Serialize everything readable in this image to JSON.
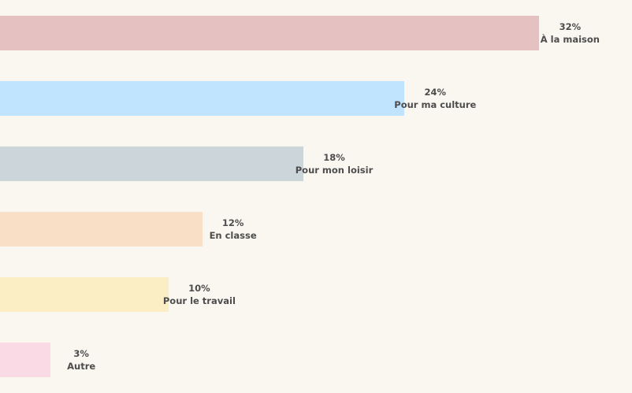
{
  "chart_data": {
    "type": "bar",
    "orientation": "horizontal",
    "categories": [
      "À la maison",
      "Pour ma culture",
      "Pour mon loisir",
      "En classe",
      "Pour le travail",
      "Autre"
    ],
    "values": [
      32,
      24,
      18,
      12,
      10,
      3
    ],
    "value_labels": [
      "32%",
      "24%",
      "18%",
      "12%",
      "10%",
      "3%"
    ],
    "colors": [
      "#e6c1c1",
      "#c0e4fe",
      "#ccd5da",
      "#f9dfc6",
      "#fbeec4",
      "#fadbe5"
    ],
    "unit": "%",
    "xlim": [
      0,
      37.5
    ],
    "grid": false,
    "legend": "none"
  }
}
